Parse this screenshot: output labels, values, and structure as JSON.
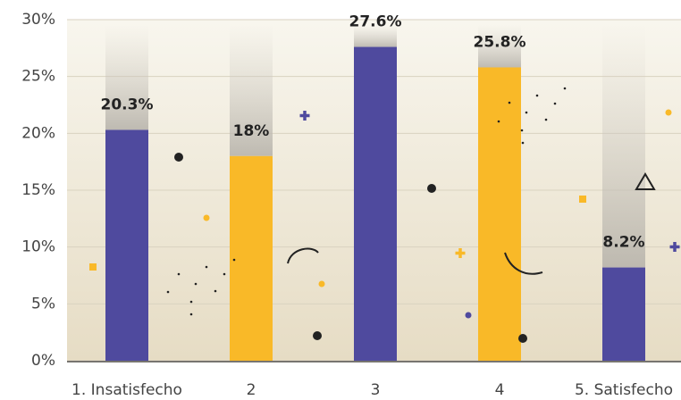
{
  "chart_data": {
    "type": "bar",
    "categories": [
      "1. Insatisfecho",
      "2",
      "3",
      "4",
      "5. Satisfecho"
    ],
    "values": [
      20.3,
      18,
      27.6,
      25.8,
      8.2
    ],
    "value_labels": [
      "20.3%",
      "18%",
      "27.6%",
      "25.8%",
      "8.2%"
    ],
    "colors": [
      "#4f4a9e",
      "#f9b928",
      "#4f4a9e",
      "#f9b928",
      "#4f4a9e"
    ],
    "ylim": [
      0,
      30
    ],
    "yticks": [
      {
        "value": 0,
        "label": "0%"
      },
      {
        "value": 5,
        "label": "5%"
      },
      {
        "value": 10,
        "label": "10%"
      },
      {
        "value": 15,
        "label": "15%"
      },
      {
        "value": 20,
        "label": "20%"
      },
      {
        "value": 25,
        "label": "25%"
      },
      {
        "value": 30,
        "label": "30%"
      }
    ],
    "grid": true
  }
}
